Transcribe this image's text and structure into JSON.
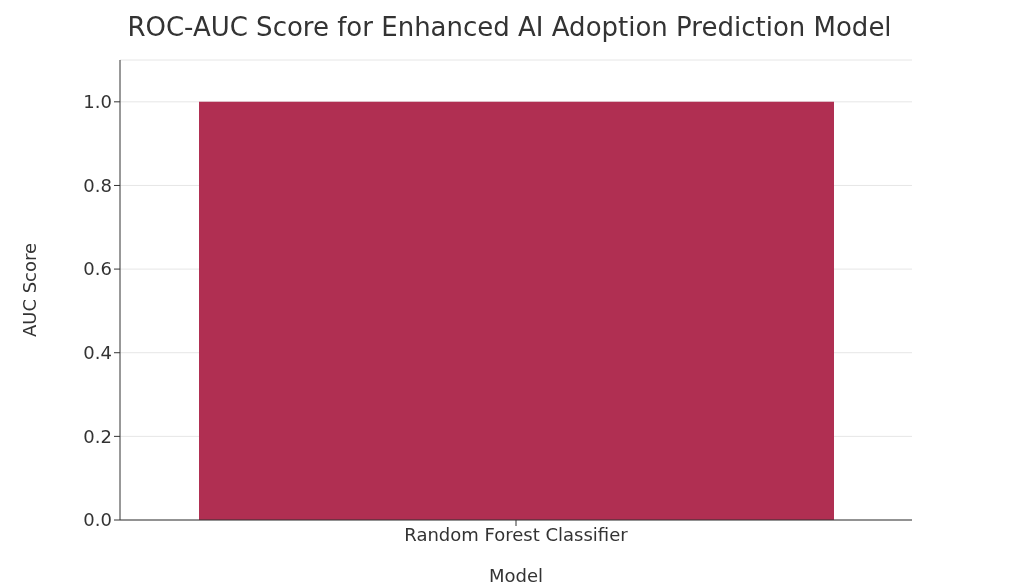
{
  "chart_data": {
    "type": "bar",
    "title": "ROC-AUC Score for Enhanced AI Adoption Prediction Model",
    "xlabel": "Model",
    "ylabel": "AUC Score",
    "categories": [
      "Random Forest Classifier"
    ],
    "values": [
      1.0
    ],
    "color": "#b02f52",
    "ylim": [
      0,
      1.1
    ],
    "yticks": [
      {
        "value": 0,
        "label": "0.0"
      },
      0.2,
      0.4,
      0.6,
      0.8,
      {
        "value": 1,
        "label": "1.0"
      }
    ],
    "grid": "y"
  }
}
